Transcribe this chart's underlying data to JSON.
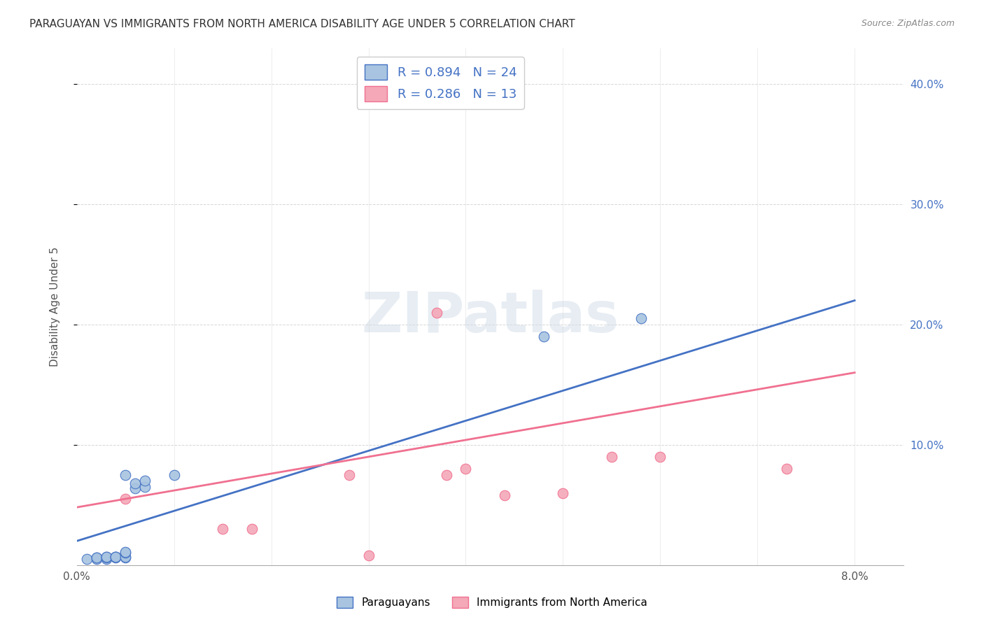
{
  "title": "PARAGUAYAN VS IMMIGRANTS FROM NORTH AMERICA DISABILITY AGE UNDER 5 CORRELATION CHART",
  "source": "Source: ZipAtlas.com",
  "ylabel": "Disability Age Under 5",
  "ylabel_right_ticks": [
    "40.0%",
    "30.0%",
    "20.0%",
    "10.0%"
  ],
  "ylabel_right_vals": [
    0.4,
    0.3,
    0.2,
    0.1
  ],
  "legend_bottom": [
    "Paraguayans",
    "Immigrants from North America"
  ],
  "blue_R": 0.894,
  "blue_N": 24,
  "pink_R": 0.286,
  "pink_N": 13,
  "blue_color": "#a8c4e0",
  "pink_color": "#f4a8b8",
  "blue_line_color": "#4472c4",
  "pink_line_color": "#f07090",
  "blue_scatter": [
    [
      0.001,
      0.005
    ],
    [
      0.002,
      0.005
    ],
    [
      0.002,
      0.006
    ],
    [
      0.002,
      0.006
    ],
    [
      0.003,
      0.005
    ],
    [
      0.003,
      0.006
    ],
    [
      0.003,
      0.007
    ],
    [
      0.003,
      0.007
    ],
    [
      0.004,
      0.006
    ],
    [
      0.004,
      0.007
    ],
    [
      0.004,
      0.007
    ],
    [
      0.004,
      0.007
    ],
    [
      0.005,
      0.006
    ],
    [
      0.005,
      0.007
    ],
    [
      0.005,
      0.01
    ],
    [
      0.005,
      0.011
    ],
    [
      0.005,
      0.075
    ],
    [
      0.006,
      0.064
    ],
    [
      0.006,
      0.068
    ],
    [
      0.007,
      0.065
    ],
    [
      0.007,
      0.07
    ],
    [
      0.01,
      0.075
    ],
    [
      0.048,
      0.19
    ],
    [
      0.058,
      0.205
    ]
  ],
  "pink_scatter": [
    [
      0.005,
      0.055
    ],
    [
      0.015,
      0.03
    ],
    [
      0.018,
      0.03
    ],
    [
      0.028,
      0.075
    ],
    [
      0.03,
      0.008
    ],
    [
      0.038,
      0.075
    ],
    [
      0.04,
      0.08
    ],
    [
      0.044,
      0.058
    ],
    [
      0.05,
      0.06
    ],
    [
      0.055,
      0.09
    ],
    [
      0.06,
      0.09
    ],
    [
      0.073,
      0.08
    ],
    [
      0.037,
      0.21
    ]
  ],
  "blue_line": [
    [
      0.0,
      0.02
    ],
    [
      0.08,
      0.22
    ]
  ],
  "pink_line": [
    [
      0.0,
      0.048
    ],
    [
      0.08,
      0.16
    ]
  ],
  "watermark": "ZIPatlas",
  "xlim": [
    0.0,
    0.085
  ],
  "ylim": [
    0.0,
    0.43
  ],
  "background_color": "#ffffff",
  "grid_color": "#cccccc"
}
